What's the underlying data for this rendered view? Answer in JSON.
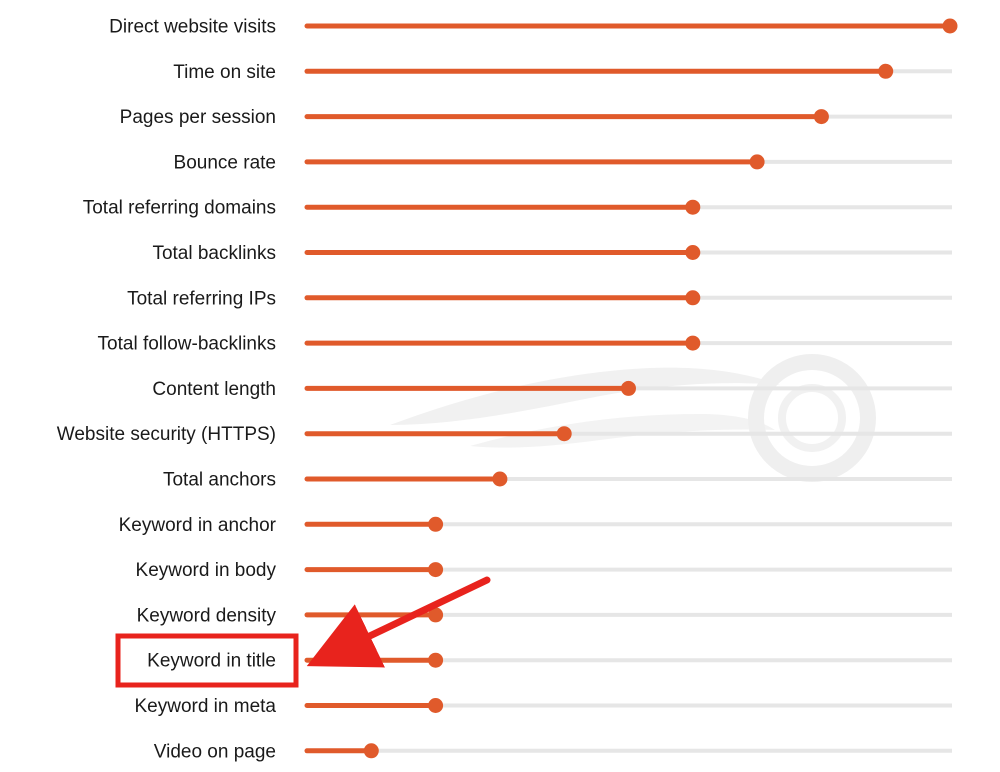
{
  "chart_data": {
    "type": "lollipop",
    "title": "",
    "xlabel": "",
    "ylabel": "",
    "xlim": [
      0,
      100
    ],
    "categories": [
      "Direct website visits",
      "Time on site",
      "Pages per session",
      "Bounce rate",
      "Total referring domains",
      "Total backlinks",
      "Total referring IPs",
      "Total follow-backlinks",
      "Content length",
      "Website security (HTTPS)",
      "Total anchors",
      "Keyword in anchor",
      "Keyword in body",
      "Keyword density",
      "Keyword in title",
      "Keyword in meta",
      "Video on page"
    ],
    "values": [
      100,
      90,
      80,
      70,
      60,
      60,
      60,
      60,
      50,
      40,
      30,
      20,
      20,
      20,
      20,
      20,
      10
    ],
    "grid": false,
    "highlight": {
      "category": "Keyword in title",
      "style": "red box with arrow pointing to label"
    }
  },
  "colors": {
    "bar": "#e05a2b",
    "track": "#e6e6e6",
    "highlight": "#e8231d",
    "watermark": "#f1f1f1"
  },
  "watermark": {
    "icon": "semrush-logo-icon"
  }
}
